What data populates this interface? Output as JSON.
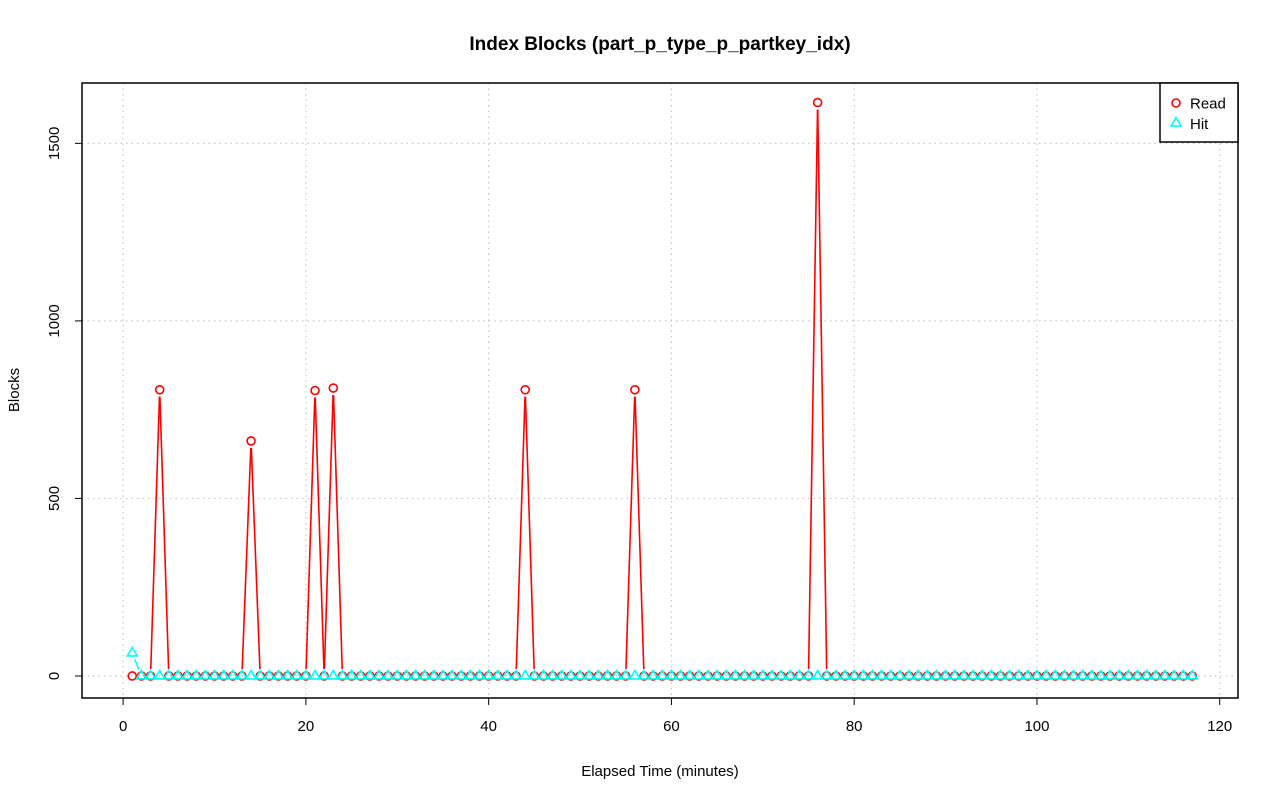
{
  "chart_data": {
    "type": "line",
    "title": "Index Blocks (part_p_type_p_partkey_idx)",
    "xlabel": "Elapsed Time (minutes)",
    "ylabel": "Blocks",
    "xlim": [
      -4.5,
      122
    ],
    "ylim": [
      -62,
      1670
    ],
    "x_ticks": [
      0,
      20,
      40,
      60,
      80,
      100,
      120
    ],
    "y_ticks": [
      0,
      500,
      1000,
      1500
    ],
    "grid": true,
    "legend_position": "top-right",
    "series": [
      {
        "name": "Read",
        "color": "#ff0000",
        "marker": "circle",
        "x_range": [
          1,
          117
        ],
        "default_value": 0,
        "peaks": [
          {
            "x": 4,
            "y": 806
          },
          {
            "x": 14,
            "y": 662
          },
          {
            "x": 21,
            "y": 804
          },
          {
            "x": 23,
            "y": 811
          },
          {
            "x": 44,
            "y": 806
          },
          {
            "x": 56,
            "y": 806
          },
          {
            "x": 76,
            "y": 1615
          }
        ]
      },
      {
        "name": "Hit",
        "color": "#00ffff",
        "marker": "triangle",
        "x_range": [
          1,
          117
        ],
        "default_value": 0,
        "peaks": [
          {
            "x": 1,
            "y": 65
          }
        ]
      }
    ]
  }
}
